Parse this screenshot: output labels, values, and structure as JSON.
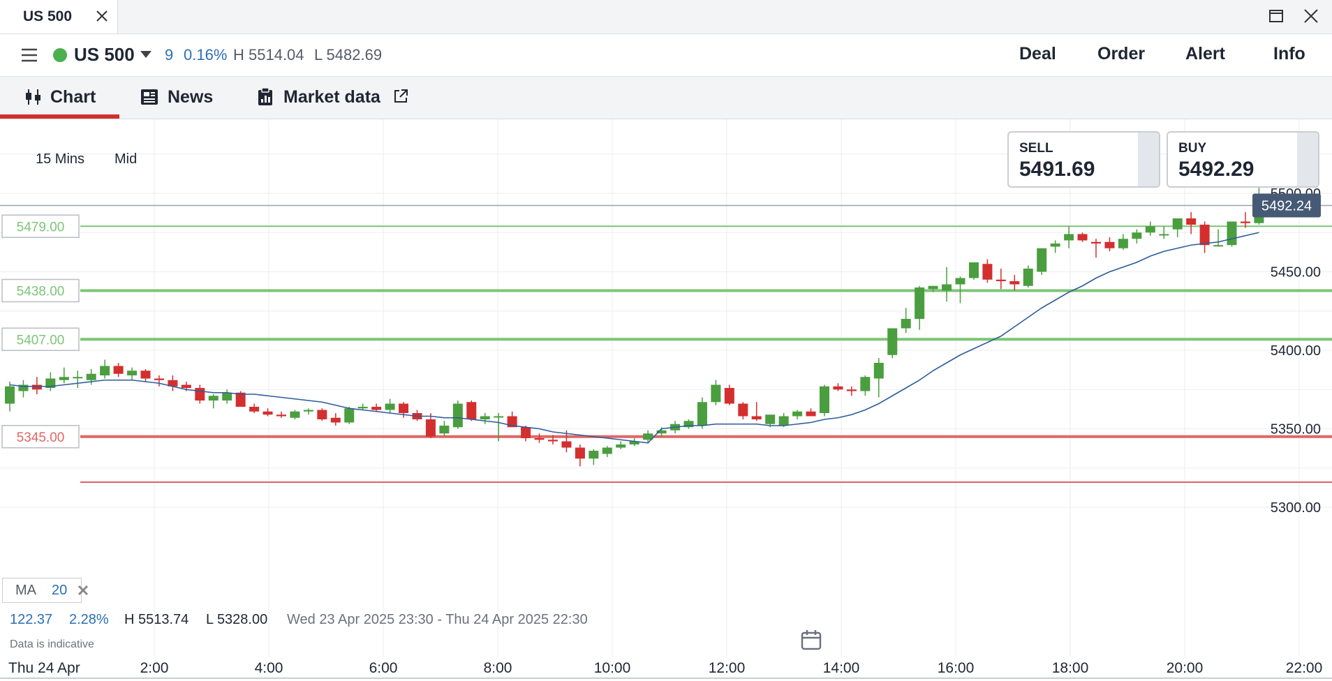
{
  "window": {
    "tab_title": "US 500"
  },
  "header": {
    "symbol": "US 500",
    "change": "9",
    "change_pct": "0.16%",
    "high": "H 5514.04",
    "low": "L 5482.69",
    "actions": [
      "Deal",
      "Order",
      "Alert",
      "Info"
    ]
  },
  "tabs": [
    {
      "label": "Chart",
      "icon": "candlestick-icon",
      "active": true
    },
    {
      "label": "News",
      "icon": "newspaper-icon",
      "active": false
    },
    {
      "label": "Market data",
      "icon": "clipboard-chart-icon",
      "active": false
    }
  ],
  "controls": {
    "interval": "15 Mins",
    "price_type": "Mid"
  },
  "quote": {
    "sell_label": "SELL",
    "sell_price": "5491.69",
    "buy_label": "BUY",
    "buy_price": "5492.29"
  },
  "chart_data": {
    "type": "candlestick",
    "y_ticks": [
      "5500.00",
      "5450.00",
      "5400.00",
      "5350.00",
      "5300.00"
    ],
    "x_ticks": [
      "Thu 24 Apr",
      "2:00",
      "4:00",
      "6:00",
      "8:00",
      "10:00",
      "12:00",
      "14:00",
      "16:00",
      "18:00",
      "20:00",
      "22:00"
    ],
    "ylim": [
      5290,
      5520
    ],
    "current_price": "5492.24",
    "current_price_value": 5492.24,
    "levels": [
      {
        "label": "5479.00",
        "value": 5479,
        "color": "#7cc576"
      },
      {
        "label": "5438.00",
        "value": 5438,
        "color": "#7cc576"
      },
      {
        "label": "5407.00",
        "value": 5407,
        "color": "#7cc576"
      },
      {
        "label": "5345.00",
        "value": 5345,
        "color": "#e06666"
      }
    ],
    "lower_line": {
      "value": 5316,
      "color": "#d32f2f"
    },
    "candles": [
      [
        5366,
        5380,
        5361,
        5377
      ],
      [
        5374,
        5381,
        5370,
        5378
      ],
      [
        5378,
        5383,
        5372,
        5375
      ],
      [
        5376,
        5386,
        5374,
        5382
      ],
      [
        5381,
        5389,
        5379,
        5383
      ],
      [
        5383,
        5387,
        5376,
        5383
      ],
      [
        5381,
        5388,
        5378,
        5385
      ],
      [
        5384,
        5394,
        5382,
        5390
      ],
      [
        5390,
        5392,
        5383,
        5385
      ],
      [
        5384,
        5389,
        5381,
        5387
      ],
      [
        5387,
        5388,
        5380,
        5382
      ],
      [
        5382,
        5384,
        5377,
        5381
      ],
      [
        5381,
        5384,
        5374,
        5377
      ],
      [
        5378,
        5380,
        5374,
        5376
      ],
      [
        5376,
        5378,
        5366,
        5368
      ],
      [
        5368,
        5372,
        5363,
        5371
      ],
      [
        5368,
        5375,
        5366,
        5373
      ],
      [
        5373,
        5374,
        5364,
        5364
      ],
      [
        5364,
        5366,
        5360,
        5361
      ],
      [
        5361,
        5363,
        5358,
        5359
      ],
      [
        5359,
        5361,
        5357,
        5358
      ],
      [
        5357,
        5362,
        5356,
        5361
      ],
      [
        5361,
        5363,
        5359,
        5362
      ],
      [
        5362,
        5363,
        5355,
        5356
      ],
      [
        5357,
        5360,
        5352,
        5354
      ],
      [
        5354,
        5364,
        5353,
        5363
      ],
      [
        5363,
        5366,
        5362,
        5364
      ],
      [
        5364,
        5366,
        5361,
        5362
      ],
      [
        5362,
        5369,
        5360,
        5366
      ],
      [
        5366,
        5367,
        5357,
        5360
      ],
      [
        5360,
        5362,
        5355,
        5356
      ],
      [
        5356,
        5360,
        5344,
        5345
      ],
      [
        5347,
        5355,
        5345,
        5352
      ],
      [
        5351,
        5368,
        5350,
        5366
      ],
      [
        5367,
        5368,
        5355,
        5356
      ],
      [
        5356,
        5360,
        5353,
        5358
      ],
      [
        5358,
        5360,
        5342,
        5358
      ],
      [
        5358,
        5361,
        5351,
        5351
      ],
      [
        5351,
        5352,
        5342,
        5344
      ],
      [
        5344,
        5347,
        5341,
        5343
      ],
      [
        5343,
        5346,
        5340,
        5342
      ],
      [
        5342,
        5349,
        5335,
        5338
      ],
      [
        5338,
        5340,
        5326,
        5331
      ],
      [
        5331,
        5337,
        5327,
        5336
      ],
      [
        5334,
        5339,
        5332,
        5338
      ],
      [
        5338,
        5342,
        5337,
        5340
      ],
      [
        5340,
        5344,
        5339,
        5342
      ],
      [
        5343,
        5349,
        5341,
        5347
      ],
      [
        5347,
        5351,
        5345,
        5349
      ],
      [
        5349,
        5355,
        5347,
        5353
      ],
      [
        5351,
        5356,
        5350,
        5355
      ],
      [
        5352,
        5370,
        5350,
        5367
      ],
      [
        5367,
        5381,
        5365,
        5378
      ],
      [
        5376,
        5378,
        5365,
        5366
      ],
      [
        5366,
        5367,
        5356,
        5358
      ],
      [
        5358,
        5367,
        5355,
        5356
      ],
      [
        5353,
        5358,
        5351,
        5359
      ],
      [
        5352,
        5360,
        5351,
        5358
      ],
      [
        5358,
        5362,
        5356,
        5361
      ],
      [
        5361,
        5363,
        5358,
        5358
      ],
      [
        5360,
        5378,
        5358,
        5377
      ],
      [
        5377,
        5379,
        5374,
        5375
      ],
      [
        5375,
        5377,
        5371,
        5374
      ],
      [
        5374,
        5384,
        5371,
        5383
      ],
      [
        5382,
        5395,
        5370,
        5392
      ],
      [
        5397,
        5414,
        5395,
        5414
      ],
      [
        5414,
        5427,
        5411,
        5420
      ],
      [
        5420,
        5441,
        5413,
        5440
      ],
      [
        5439,
        5441,
        5437,
        5441
      ],
      [
        5438,
        5453,
        5431,
        5442
      ],
      [
        5442,
        5447,
        5430,
        5446
      ],
      [
        5446,
        5456,
        5445,
        5456
      ],
      [
        5455,
        5458,
        5443,
        5445
      ],
      [
        5445,
        5452,
        5439,
        5444
      ],
      [
        5444,
        5448,
        5438,
        5442
      ],
      [
        5441,
        5454,
        5440,
        5452
      ],
      [
        5450,
        5463,
        5448,
        5465
      ],
      [
        5466,
        5470,
        5462,
        5468
      ],
      [
        5470,
        5479,
        5465,
        5474
      ],
      [
        5474,
        5475,
        5469,
        5470
      ],
      [
        5469,
        5471,
        5459,
        5468
      ],
      [
        5469,
        5472,
        5463,
        5465
      ],
      [
        5465,
        5474,
        5464,
        5471
      ],
      [
        5471,
        5477,
        5468,
        5475
      ],
      [
        5475,
        5482,
        5473,
        5479
      ],
      [
        5474,
        5479,
        5471,
        5474
      ],
      [
        5477,
        5484,
        5472,
        5484
      ],
      [
        5484,
        5488,
        5474,
        5480
      ],
      [
        5480,
        5482,
        5462,
        5467
      ],
      [
        5467,
        5477,
        5466,
        5467
      ],
      [
        5467,
        5480,
        5466,
        5482
      ],
      [
        5482,
        5488,
        5478,
        5481
      ],
      [
        5481,
        5513,
        5480,
        5492
      ]
    ],
    "ma": {
      "name": "MA",
      "period": "20",
      "color": "#2c5b9a",
      "values": [
        5378,
        5377,
        5377,
        5377,
        5378,
        5379,
        5380,
        5381,
        5381,
        5381,
        5380,
        5379,
        5377,
        5375,
        5374,
        5373,
        5373,
        5372,
        5372,
        5371,
        5370,
        5369,
        5368,
        5367,
        5365,
        5363,
        5362,
        5361,
        5360,
        5359,
        5358,
        5358,
        5357,
        5357,
        5356,
        5355,
        5354,
        5352,
        5351,
        5350,
        5348,
        5347,
        5346,
        5345,
        5344,
        5343,
        5342,
        5341,
        5350,
        5351,
        5352,
        5352,
        5353,
        5353,
        5353,
        5353,
        5352,
        5352,
        5353,
        5354,
        5356,
        5357,
        5359,
        5362,
        5366,
        5371,
        5376,
        5381,
        5387,
        5392,
        5397,
        5401,
        5405,
        5409,
        5415,
        5421,
        5427,
        5432,
        5437,
        5441,
        5446,
        5450,
        5453,
        5456,
        5460,
        5463,
        5465,
        5467,
        5468,
        5469,
        5471,
        5473,
        5475
      ]
    }
  },
  "footer": {
    "range": "122.37",
    "range_pct": "2.28%",
    "high": "H 5513.74",
    "low": "L 5328.00",
    "period": "Wed 23 Apr 2025 23:30 - Thu 24 Apr 2025 22:30",
    "disclaimer": "Data is indicative"
  }
}
